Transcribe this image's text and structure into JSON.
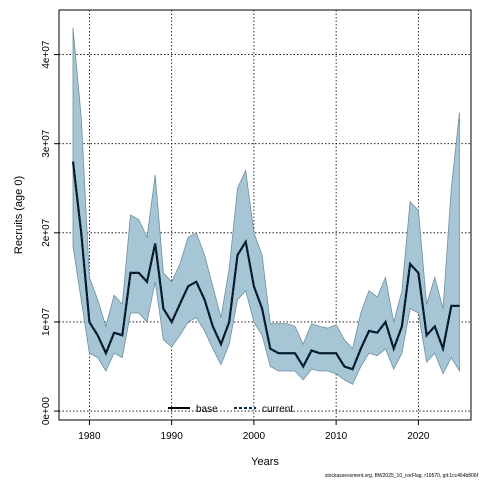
{
  "chart_data": {
    "type": "line",
    "xlabel": "Years",
    "ylabel": "Recruits (age 0)",
    "xlim": [
      1976.3,
      2026.4
    ],
    "ylim": [
      -1000000,
      45000000
    ],
    "x_ticks": [
      1980,
      1990,
      2000,
      2010,
      2020
    ],
    "x_tick_labels": [
      "1980",
      "1990",
      "2000",
      "2010",
      "2020"
    ],
    "y_ticks": [
      0,
      10000000,
      20000000,
      30000000,
      40000000
    ],
    "y_tick_labels": [
      "0e+00",
      "1e+07",
      "2e+07",
      "3e+07",
      "4e+07"
    ],
    "grid": true,
    "legend_position": "bottom",
    "interval_color": "#a6c6d6",
    "interval_border_color": "#6f8f9f",
    "x": [
      1978,
      1979,
      1980,
      1981,
      1982,
      1983,
      1984,
      1985,
      1986,
      1987,
      1988,
      1989,
      1990,
      1991,
      1992,
      1993,
      1994,
      1995,
      1996,
      1997,
      1998,
      1999,
      2000,
      2001,
      2002,
      2003,
      2004,
      2005,
      2006,
      2007,
      2008,
      2009,
      2010,
      2011,
      2012,
      2013,
      2014,
      2015,
      2016,
      2017,
      2018,
      2019,
      2020,
      2021,
      2022,
      2023,
      2024,
      2025
    ],
    "series": [
      {
        "name": "base",
        "color": "#000000",
        "style": "solid",
        "values": [
          28000000,
          20000000,
          10000000,
          8500000,
          6500000,
          8800000,
          8500000,
          15500000,
          15500000,
          14500000,
          18800000,
          11500000,
          10000000,
          12000000,
          14000000,
          14500000,
          12500000,
          9500000,
          7500000,
          10000000,
          17500000,
          19000000,
          14000000,
          11500000,
          7000000,
          6500000,
          6500000,
          6500000,
          5000000,
          6800000,
          6500000,
          6500000,
          6500000,
          5000000,
          4700000,
          7000000,
          9000000,
          8800000,
          10000000,
          7000000,
          9500000,
          16500000,
          15500000,
          8500000,
          9500000,
          7000000,
          11800000,
          11800000
        ]
      },
      {
        "name": "current",
        "color": "#0a2a4a",
        "style": "dashed",
        "values": [
          28000000,
          20000000,
          10000000,
          8500000,
          6500000,
          8800000,
          8500000,
          15500000,
          15500000,
          14500000,
          18800000,
          11500000,
          10000000,
          12000000,
          14000000,
          14500000,
          12500000,
          9500000,
          7500000,
          10000000,
          17500000,
          19000000,
          14000000,
          11500000,
          7000000,
          6500000,
          6500000,
          6500000,
          5000000,
          6800000,
          6500000,
          6500000,
          6500000,
          5000000,
          4700000,
          7000000,
          9000000,
          8800000,
          10000000,
          7000000,
          9500000,
          16500000,
          15500000,
          8500000,
          9500000,
          7000000,
          11800000,
          11800000
        ]
      }
    ],
    "interval_upper": [
      43000000,
      33000000,
      15000000,
      12500000,
      9500000,
      13000000,
      12000000,
      22000000,
      21500000,
      19500000,
      26500000,
      15500000,
      14500000,
      16500000,
      19500000,
      20000000,
      17500000,
      14000000,
      10500000,
      16000000,
      25000000,
      27000000,
      20000000,
      17500000,
      9800000,
      9800000,
      9800000,
      9500000,
      7500000,
      9800000,
      9500000,
      9300000,
      9700000,
      8000000,
      7000000,
      11000000,
      13500000,
      12800000,
      15000000,
      10000000,
      13500000,
      23500000,
      22500000,
      12000000,
      15000000,
      11500000,
      25000000,
      33500000
    ],
    "interval_lower": [
      18500000,
      12500000,
      6500000,
      6000000,
      4500000,
      6500000,
      6000000,
      11000000,
      11000000,
      10000000,
      14500000,
      8000000,
      7200000,
      8500000,
      10000000,
      10500000,
      9000000,
      7000000,
      5200000,
      7500000,
      12500000,
      13500000,
      10000000,
      8500000,
      5000000,
      4500000,
      4500000,
      4500000,
      3500000,
      4700000,
      4500000,
      4500000,
      4200000,
      3500000,
      3000000,
      5000000,
      6500000,
      6200000,
      7000000,
      4700000,
      6500000,
      11500000,
      11000000,
      5500000,
      6500000,
      4200000,
      6000000,
      4500000
    ]
  },
  "footer": {
    "text": "stockassessment.org, BW2025_10_corFlag, r19570, git:1cc464b806f"
  }
}
